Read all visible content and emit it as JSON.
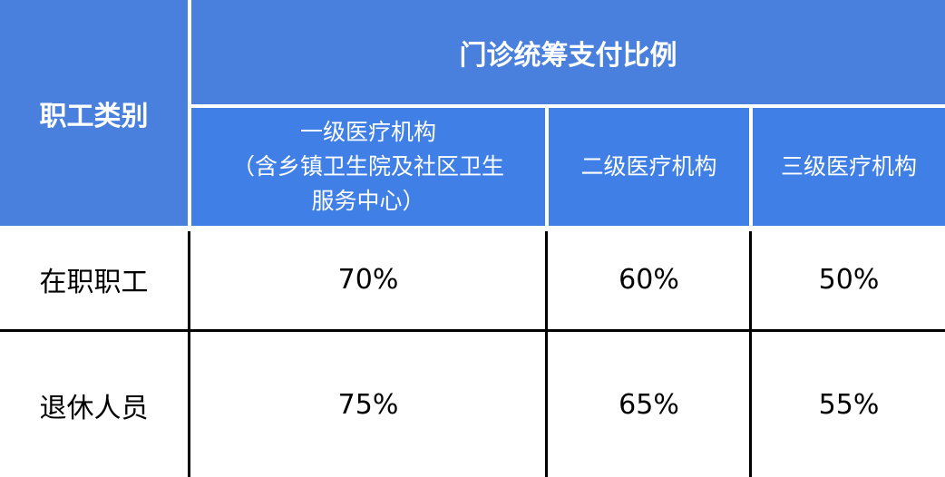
{
  "table": {
    "header": {
      "category_label": "职工类别",
      "group_label": "门诊统筹支付比例",
      "columns": [
        "一级医疗机构\n（含乡镇卫生院及社区卫生服务中心）",
        "二级医疗机构",
        "三级医疗机构"
      ],
      "column_1_lines": [
        "一级医疗机构",
        "（含乡镇卫生院及社区卫生",
        "服务中心）"
      ]
    },
    "rows": [
      {
        "category": "在职职工",
        "values": [
          "70%",
          "60%",
          "50%"
        ]
      },
      {
        "category": "退休人员",
        "values": [
          "75%",
          "65%",
          "55%"
        ]
      }
    ]
  },
  "colors": {
    "header_main": "#4a80dd",
    "header_sub": "#3f7fe6",
    "border": "#000000"
  }
}
